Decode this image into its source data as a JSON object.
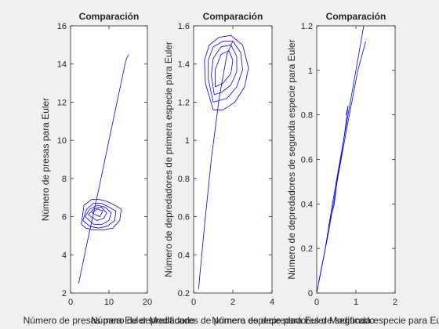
{
  "figure": {
    "background": "#f0f0f0",
    "axes_background": "#ffffff",
    "line_color": "#0000ff",
    "axis_color": "#262626"
  },
  "chart_data": [
    {
      "type": "line",
      "title": "Comparación",
      "xlabel": "Número de presas para Euler Modificado",
      "ylabel": "Número de presas para Euler",
      "xlim": [
        0,
        20
      ],
      "ylim": [
        2,
        16
      ],
      "xticks": [
        0,
        10,
        20
      ],
      "yticks": [
        2,
        4,
        6,
        8,
        10,
        12,
        14,
        16
      ],
      "grid": false,
      "series": [
        {
          "values": [
            [
              2.1,
              2.5
            ],
            [
              4.5,
              4.8
            ],
            [
              7.5,
              7.6
            ],
            [
              10.2,
              10.2
            ],
            [
              12.5,
              12.4
            ],
            [
              14.4,
              14.2
            ],
            [
              15.1,
              14.5
            ]
          ]
        },
        {
          "values": [
            [
              2.8,
              5.6
            ],
            [
              3.5,
              6.6
            ],
            [
              5.5,
              6.9
            ],
            [
              7.5,
              6.9
            ],
            [
              9.5,
              6.8
            ],
            [
              11.5,
              6.6
            ],
            [
              13.2,
              6.4
            ],
            [
              12.8,
              5.8
            ],
            [
              11.0,
              5.4
            ],
            [
              8.5,
              5.3
            ],
            [
              6.0,
              5.3
            ],
            [
              4.0,
              5.4
            ],
            [
              2.8,
              5.6
            ]
          ]
        },
        {
          "values": [
            [
              3.2,
              5.8
            ],
            [
              4.2,
              6.4
            ],
            [
              6.0,
              6.7
            ],
            [
              8.0,
              6.7
            ],
            [
              10.0,
              6.5
            ],
            [
              11.8,
              6.3
            ],
            [
              11.5,
              5.8
            ],
            [
              9.5,
              5.5
            ],
            [
              7.2,
              5.4
            ],
            [
              5.0,
              5.5
            ],
            [
              3.2,
              5.8
            ]
          ]
        },
        {
          "values": [
            [
              3.8,
              6.0
            ],
            [
              5.0,
              6.4
            ],
            [
              7.0,
              6.6
            ],
            [
              9.0,
              6.5
            ],
            [
              10.6,
              6.2
            ],
            [
              10.0,
              5.8
            ],
            [
              8.2,
              5.6
            ],
            [
              6.0,
              5.6
            ],
            [
              3.8,
              6.0
            ]
          ]
        },
        {
          "values": [
            [
              4.6,
              6.1
            ],
            [
              6.0,
              6.4
            ],
            [
              8.0,
              6.5
            ],
            [
              9.4,
              6.2
            ],
            [
              8.6,
              5.9
            ],
            [
              6.8,
              5.8
            ],
            [
              4.6,
              6.1
            ]
          ]
        },
        {
          "values": [
            [
              5.6,
              6.2
            ],
            [
              7.0,
              6.4
            ],
            [
              8.4,
              6.3
            ],
            [
              7.6,
              6.0
            ],
            [
              5.6,
              6.2
            ]
          ]
        }
      ]
    },
    {
      "type": "line",
      "title": "Comparación",
      "xlabel": "Número de depredadores de primera especie para Euler Modificado",
      "ylabel": "Número de depredadores de primera especie para Euler",
      "xlim": [
        0,
        4
      ],
      "ylim": [
        0.2,
        1.6
      ],
      "xticks": [
        0,
        2,
        4
      ],
      "yticks": [
        0.2,
        0.4,
        0.6,
        0.8,
        1,
        1.2,
        1.4,
        1.6
      ],
      "grid": false,
      "series": [
        {
          "values": [
            [
              0.25,
              0.22
            ],
            [
              0.55,
              0.55
            ],
            [
              0.9,
              0.9
            ],
            [
              1.3,
              1.22
            ],
            [
              1.7,
              1.45
            ],
            [
              2.0,
              1.52
            ]
          ]
        },
        {
          "values": [
            [
              1.0,
              1.16
            ],
            [
              0.6,
              1.3
            ],
            [
              0.55,
              1.42
            ],
            [
              0.8,
              1.5
            ],
            [
              1.3,
              1.54
            ],
            [
              1.9,
              1.55
            ],
            [
              2.5,
              1.5
            ],
            [
              2.8,
              1.38
            ],
            [
              2.6,
              1.28
            ],
            [
              2.1,
              1.2
            ],
            [
              1.5,
              1.16
            ],
            [
              1.0,
              1.16
            ]
          ]
        },
        {
          "values": [
            [
              1.0,
              1.2
            ],
            [
              0.75,
              1.32
            ],
            [
              0.75,
              1.42
            ],
            [
              1.0,
              1.49
            ],
            [
              1.5,
              1.52
            ],
            [
              2.0,
              1.52
            ],
            [
              2.4,
              1.46
            ],
            [
              2.5,
              1.37
            ],
            [
              2.2,
              1.28
            ],
            [
              1.7,
              1.22
            ],
            [
              1.0,
              1.2
            ]
          ]
        },
        {
          "values": [
            [
              1.05,
              1.24
            ],
            [
              0.9,
              1.34
            ],
            [
              1.0,
              1.43
            ],
            [
              1.4,
              1.49
            ],
            [
              1.9,
              1.5
            ],
            [
              2.2,
              1.44
            ],
            [
              2.2,
              1.36
            ],
            [
              1.9,
              1.29
            ],
            [
              1.4,
              1.25
            ],
            [
              1.05,
              1.24
            ]
          ]
        },
        {
          "values": [
            [
              1.1,
              1.28
            ],
            [
              1.1,
              1.37
            ],
            [
              1.4,
              1.45
            ],
            [
              1.8,
              1.47
            ],
            [
              2.0,
              1.42
            ],
            [
              1.9,
              1.35
            ],
            [
              1.5,
              1.3
            ],
            [
              1.1,
              1.28
            ]
          ]
        }
      ]
    },
    {
      "type": "line",
      "title": "Comparación",
      "xlabel": "Número de depredadores de segunda especie para Euler Modificado",
      "ylabel": "Número de depredadores de segunda especie para Euler",
      "xlim": [
        0,
        2
      ],
      "ylim": [
        0,
        1.2
      ],
      "xticks": [
        0,
        1,
        2
      ],
      "yticks": [
        0,
        0.2,
        0.4,
        0.6,
        0.8,
        1,
        1.2
      ],
      "grid": false,
      "series": [
        {
          "values": [
            [
              0.0,
              0.0
            ],
            [
              0.2,
              0.18
            ],
            [
              0.4,
              0.4
            ],
            [
              0.6,
              0.6
            ],
            [
              0.8,
              0.8
            ],
            [
              1.0,
              1.0
            ],
            [
              1.2,
              1.2
            ]
          ]
        },
        {
          "values": [
            [
              0.05,
              0.05
            ],
            [
              0.3,
              0.27
            ],
            [
              0.55,
              0.53
            ],
            [
              0.8,
              0.77
            ],
            [
              1.05,
              1.0
            ],
            [
              1.25,
              1.13
            ]
          ]
        },
        {
          "values": [
            [
              0.3,
              0.3
            ],
            [
              0.45,
              0.4
            ],
            [
              0.55,
              0.55
            ],
            [
              0.5,
              0.48
            ],
            [
              0.7,
              0.7
            ],
            [
              0.8,
              0.84
            ],
            [
              0.75,
              0.8
            ]
          ]
        }
      ]
    }
  ]
}
